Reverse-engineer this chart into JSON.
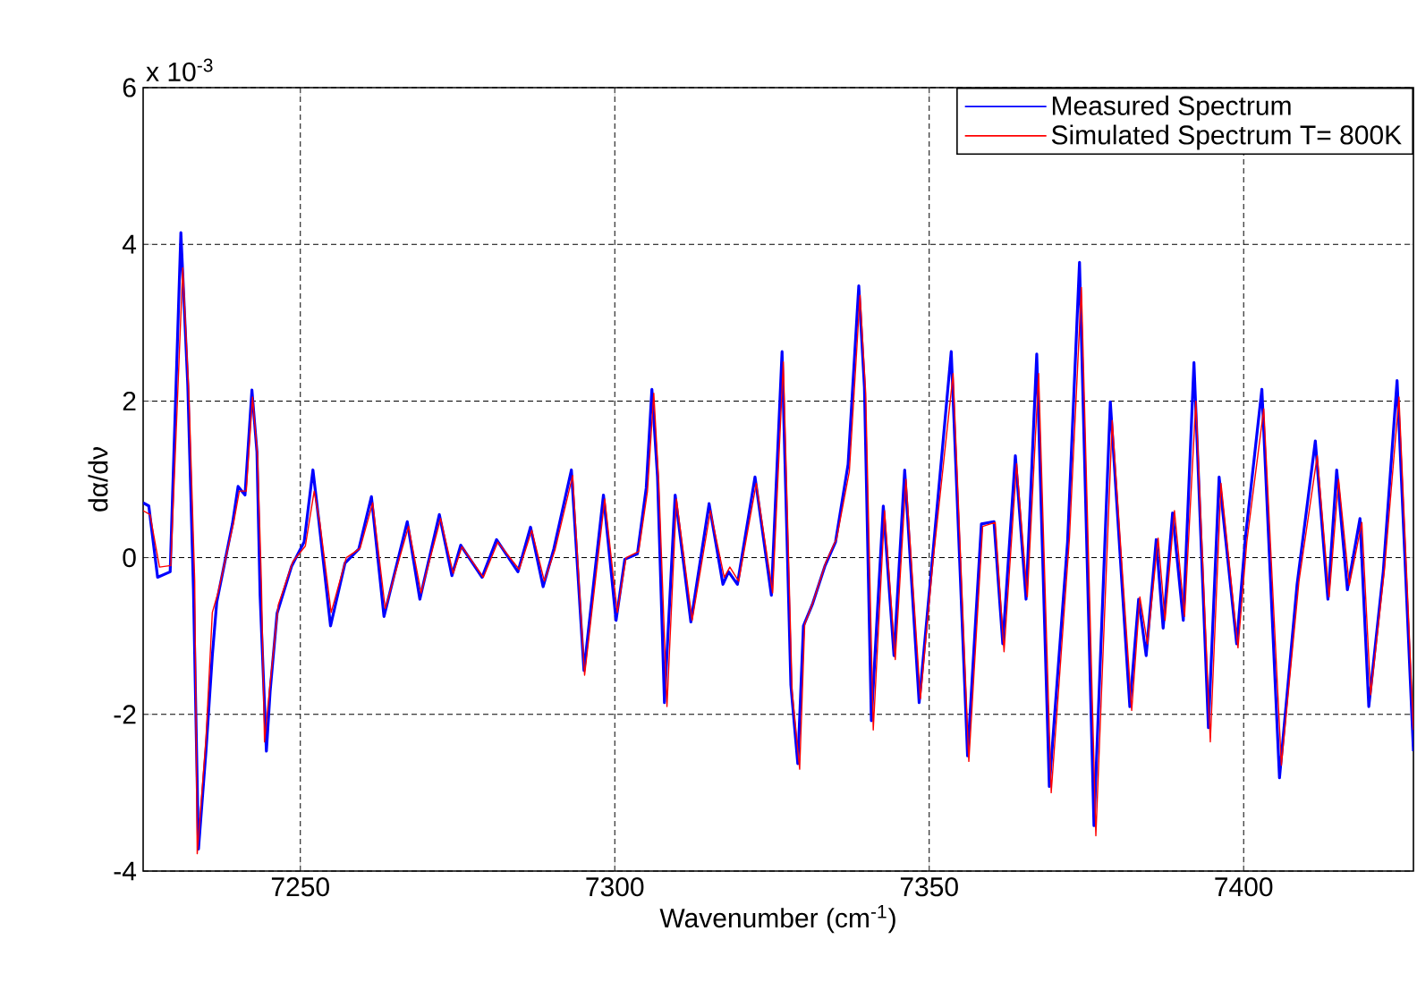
{
  "chart_data": {
    "type": "line",
    "xlabel": "Wavenumber (cm$^{-1}$)",
    "ylabel": "dα/dν",
    "annotations": [
      "x 10$^{-3}$"
    ],
    "xlim": [
      7225,
      7427
    ],
    "ylim": [
      -4,
      6
    ],
    "xticks": [
      7250,
      7300,
      7350,
      7400
    ],
    "yticks": [
      -4,
      -2,
      0,
      2,
      4,
      6
    ],
    "grid": true,
    "legend": "top right",
    "series": [
      {
        "name": "Measured Spectrum",
        "color": "#0000ff",
        "x": [
          7225,
          7225.9,
          7227.3,
          7229.3,
          7231,
          7232.1,
          7233,
          7233.8,
          7235,
          7236,
          7236.7,
          7239.2,
          7240.1,
          7241.2,
          7242.3,
          7243.1,
          7243.6,
          7244.6,
          7245.2,
          7246.3,
          7248.6,
          7250.6,
          7252,
          7252.9,
          7254.8,
          7257.1,
          7259.3,
          7261.3,
          7263.3,
          7267,
          7269,
          7272.1,
          7274.1,
          7275.5,
          7278.9,
          7281.2,
          7284.6,
          7286.6,
          7288.6,
          7290.3,
          7293.1,
          7295.1,
          7298.2,
          7300.2,
          7301.6,
          7303.6,
          7305,
          7305.9,
          7306.8,
          7307.9,
          7309.6,
          7312.1,
          7315,
          7317.2,
          7318.1,
          7319.5,
          7322.3,
          7324.9,
          7326.6,
          7328,
          7329.1,
          7330,
          7331.4,
          7333.4,
          7335.1,
          7337.1,
          7338.8,
          7339.7,
          7340.8,
          7342.7,
          7344.4,
          7346.1,
          7348.4,
          7350.4,
          7353.5,
          7356.1,
          7358.3,
          7360.3,
          7361.7,
          7363.7,
          7365.4,
          7367.1,
          7369.1,
          7372,
          7373.9,
          7376.2,
          7378.8,
          7381.9,
          7383.3,
          7384.5,
          7386.1,
          7387.2,
          7388.7,
          7390.4,
          7392.1,
          7394.4,
          7396.1,
          7398.9,
          7400.3,
          7402.9,
          7405.7,
          7408.5,
          7411.4,
          7413.4,
          7414.8,
          7416.5,
          7418.5,
          7419.9,
          7422.2,
          7424.4,
          7427
        ],
        "values": [
          0.7,
          0.66,
          -0.25,
          -0.18,
          4.15,
          2.2,
          -0.4,
          -3.72,
          -2.46,
          -1.25,
          -0.57,
          0.43,
          0.91,
          0.8,
          2.14,
          1.35,
          -0.48,
          -2.47,
          -1.7,
          -0.71,
          -0.11,
          0.2,
          1.12,
          0.5,
          -0.87,
          -0.07,
          0.11,
          0.78,
          -0.75,
          0.46,
          -0.53,
          0.55,
          -0.23,
          0.16,
          -0.25,
          0.23,
          -0.18,
          0.39,
          -0.37,
          0.11,
          1.12,
          -1.44,
          0.8,
          -0.8,
          -0.02,
          0.05,
          0.89,
          2.15,
          1.03,
          -1.85,
          0.8,
          -0.82,
          0.69,
          -0.34,
          -0.18,
          -0.34,
          1.03,
          -0.48,
          2.63,
          -1.62,
          -2.63,
          -0.87,
          -0.6,
          -0.11,
          0.2,
          1.19,
          3.47,
          2.17,
          -2.08,
          0.66,
          -1.25,
          1.12,
          -1.85,
          -0.11,
          2.63,
          -2.53,
          0.43,
          0.46,
          -1.1,
          1.3,
          -0.53,
          2.6,
          -2.92,
          0.2,
          3.77,
          -3.42,
          1.99,
          -1.9,
          -0.53,
          -1.25,
          0.23,
          -0.9,
          0.57,
          -0.8,
          2.49,
          -2.17,
          1.03,
          -1.1,
          0.27,
          2.15,
          -2.81,
          -0.34,
          1.49,
          -0.53,
          1.12,
          -0.41,
          0.5,
          -1.9,
          -0.18,
          2.26,
          -2.47
        ]
      },
      {
        "name": "Simulated Spectrum T= 800K",
        "color": "#ff0000",
        "x": [
          7225,
          7226.1,
          7227.6,
          7229.4,
          7231.3,
          7232.3,
          7233.2,
          7233.6,
          7235,
          7236,
          7236.9,
          7239.4,
          7240.3,
          7241.4,
          7242.4,
          7243.2,
          7243.8,
          7244.3,
          7245.2,
          7246.5,
          7248.8,
          7250.8,
          7252.2,
          7253.1,
          7254.9,
          7257.3,
          7259.5,
          7261.5,
          7263.5,
          7267.2,
          7269.2,
          7272.3,
          7274.3,
          7275.7,
          7279.1,
          7281.4,
          7284.8,
          7286.8,
          7288.8,
          7290.5,
          7293.3,
          7295.2,
          7298.4,
          7300.4,
          7301.8,
          7303.8,
          7305.2,
          7306.2,
          7307,
          7308.3,
          7309.8,
          7312.3,
          7315.2,
          7317.4,
          7318.3,
          7319.7,
          7322.5,
          7325.1,
          7326.8,
          7328.2,
          7329.4,
          7330.2,
          7331.6,
          7333.6,
          7335.3,
          7337.3,
          7339,
          7339.9,
          7341.1,
          7342.9,
          7344.6,
          7346.3,
          7348.6,
          7350.6,
          7353.8,
          7356.3,
          7358.5,
          7360.5,
          7361.9,
          7363.9,
          7365.6,
          7367.4,
          7369.4,
          7372.3,
          7374.2,
          7376.5,
          7379.1,
          7382.2,
          7383.5,
          7384.7,
          7386.4,
          7387.5,
          7389,
          7390.6,
          7392.4,
          7394.7,
          7396.4,
          7399.1,
          7400.5,
          7403.2,
          7406,
          7408.8,
          7411.7,
          7413.6,
          7415.1,
          7416.8,
          7418.8,
          7420.2,
          7422.4,
          7424.7,
          7427
        ],
        "values": [
          0.6,
          0.55,
          -0.12,
          -0.1,
          3.7,
          2.05,
          -0.3,
          -3.78,
          -2.3,
          -0.7,
          -0.45,
          0.45,
          0.85,
          0.85,
          2.05,
          1.3,
          -0.3,
          -2.35,
          -1.6,
          -0.6,
          -0.05,
          0.15,
          0.85,
          0.45,
          -0.7,
          0.0,
          0.12,
          0.7,
          -0.65,
          0.4,
          -0.45,
          0.5,
          -0.2,
          0.14,
          -0.25,
          0.2,
          -0.15,
          0.35,
          -0.3,
          0.1,
          1.05,
          -1.5,
          0.75,
          -0.7,
          0.0,
          0.08,
          0.85,
          2.1,
          0.95,
          -1.9,
          0.75,
          -0.8,
          0.6,
          -0.25,
          -0.12,
          -0.3,
          0.95,
          -0.45,
          2.5,
          -1.7,
          -2.7,
          -0.85,
          -0.55,
          -0.05,
          0.25,
          1.1,
          3.35,
          2.1,
          -2.2,
          0.6,
          -1.3,
          1.0,
          -1.8,
          -0.05,
          2.35,
          -2.6,
          0.4,
          0.45,
          -1.2,
          1.2,
          -0.5,
          2.35,
          -3.0,
          0.25,
          3.45,
          -3.55,
          1.75,
          -1.95,
          -0.5,
          -1.1,
          0.25,
          -0.8,
          0.6,
          -0.75,
          2.0,
          -2.35,
          0.95,
          -1.15,
          0.2,
          1.9,
          -2.65,
          -0.3,
          1.3,
          -0.5,
          1.0,
          -0.35,
          0.45,
          -1.75,
          -0.15,
          2.05,
          -2.2
        ]
      }
    ]
  }
}
